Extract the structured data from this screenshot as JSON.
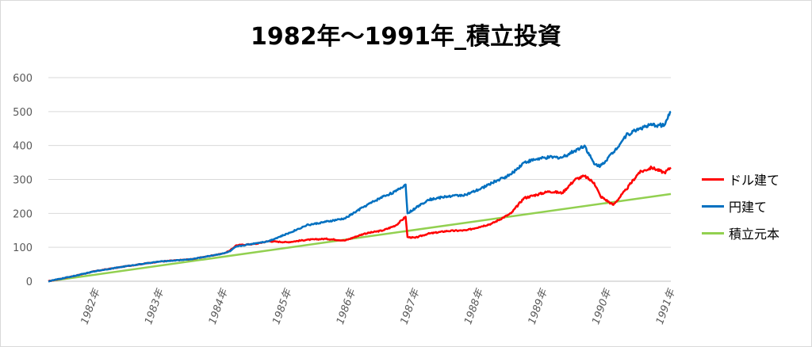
{
  "chart_data": {
    "type": "line",
    "title": "1982年～1991年_積立投資",
    "xlabel": "",
    "ylabel": "",
    "ylim": [
      0,
      600
    ],
    "yticks": [
      0,
      100,
      200,
      300,
      400,
      500,
      600
    ],
    "xlim": [
      1981.26,
      1991.0
    ],
    "xticks": [
      {
        "value": 1982.0,
        "label": "1982年"
      },
      {
        "value": 1983.0,
        "label": "1983年"
      },
      {
        "value": 1984.0,
        "label": "1984年"
      },
      {
        "value": 1985.0,
        "label": "1985年"
      },
      {
        "value": 1986.0,
        "label": "1986年"
      },
      {
        "value": 1987.0,
        "label": "1987年"
      },
      {
        "value": 1988.0,
        "label": "1988年"
      },
      {
        "value": 1989.0,
        "label": "1989年"
      },
      {
        "value": 1990.0,
        "label": "1990年"
      },
      {
        "value": 1991.0,
        "label": "1991年"
      }
    ],
    "grid": "horizontal",
    "legend_position": "right",
    "series": [
      {
        "name": "ドル建て",
        "color": "#ff0000",
        "x": [
          1981.26,
          1981.7,
          1982.0,
          1982.5,
          1983.0,
          1983.5,
          1984.0,
          1984.1,
          1984.2,
          1984.5,
          1984.7,
          1985.0,
          1985.3,
          1985.6,
          1985.9,
          1986.2,
          1986.5,
          1986.7,
          1986.85,
          1986.88,
          1987.0,
          1987.2,
          1987.5,
          1987.8,
          1988.0,
          1988.2,
          1988.5,
          1988.7,
          1988.9,
          1989.1,
          1989.3,
          1989.5,
          1989.65,
          1989.8,
          1989.9,
          1990.1,
          1990.3,
          1990.5,
          1990.7,
          1990.9,
          1991.0
        ],
        "y": [
          0,
          17,
          30,
          45,
          58,
          65,
          82,
          90,
          106,
          110,
          118,
          115,
          122,
          125,
          120,
          140,
          150,
          165,
          190,
          130,
          128,
          140,
          148,
          150,
          160,
          170,
          200,
          245,
          255,
          265,
          260,
          300,
          310,
          290,
          250,
          225,
          270,
          320,
          335,
          320,
          335
        ]
      },
      {
        "name": "円建て",
        "color": "#0070c0",
        "x": [
          1981.26,
          1981.7,
          1982.0,
          1982.5,
          1983.0,
          1983.5,
          1984.0,
          1984.1,
          1984.2,
          1984.5,
          1984.7,
          1985.0,
          1985.3,
          1985.6,
          1985.9,
          1986.2,
          1986.5,
          1986.7,
          1986.85,
          1986.88,
          1987.0,
          1987.2,
          1987.5,
          1987.8,
          1988.0,
          1988.2,
          1988.5,
          1988.7,
          1988.9,
          1989.1,
          1989.3,
          1989.5,
          1989.65,
          1989.8,
          1989.9,
          1990.1,
          1990.3,
          1990.5,
          1990.7,
          1990.9,
          1991.0
        ],
        "y": [
          0,
          17,
          30,
          45,
          58,
          65,
          82,
          88,
          102,
          112,
          118,
          140,
          165,
          175,
          185,
          220,
          250,
          265,
          285,
          200,
          215,
          240,
          250,
          255,
          270,
          290,
          315,
          350,
          360,
          365,
          365,
          385,
          400,
          345,
          340,
          380,
          430,
          450,
          460,
          460,
          500
        ]
      },
      {
        "name": "積立元本",
        "color": "#92d050",
        "x": [
          1981.26,
          1991.0
        ],
        "y": [
          0,
          257
        ]
      }
    ]
  }
}
